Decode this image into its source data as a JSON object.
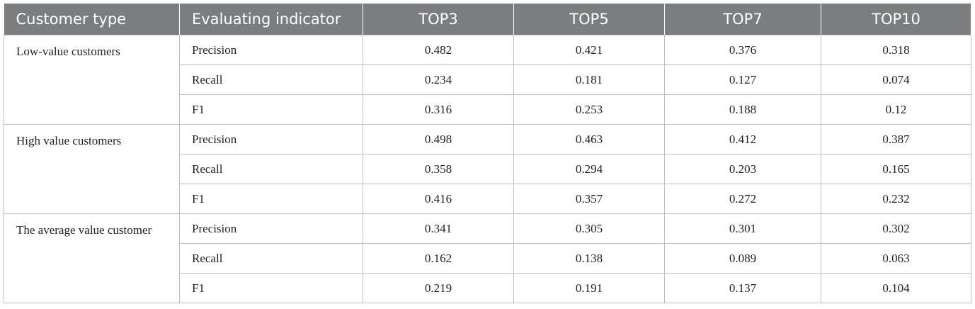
{
  "table": {
    "header": [
      "Customer type",
      "Evaluating indicator",
      "TOP3",
      "TOP5",
      "TOP7",
      "TOP10"
    ],
    "groups": [
      {
        "customer_type": "Low-value customers",
        "rows": [
          {
            "indicator": "Precision",
            "values": [
              0.482,
              0.421,
              0.376,
              0.318
            ]
          },
          {
            "indicator": "Recall",
            "values": [
              0.234,
              0.181,
              0.127,
              0.074
            ]
          },
          {
            "indicator": "F1",
            "values": [
              0.316,
              0.253,
              0.188,
              0.12
            ]
          }
        ]
      },
      {
        "customer_type": "High value customers",
        "rows": [
          {
            "indicator": "Precision",
            "values": [
              0.498,
              0.463,
              0.412,
              0.387
            ]
          },
          {
            "indicator": "Recall",
            "values": [
              0.358,
              0.294,
              0.203,
              0.165
            ]
          },
          {
            "indicator": "F1",
            "values": [
              0.416,
              0.357,
              0.272,
              0.232
            ]
          }
        ]
      },
      {
        "customer_type": "The average value customer",
        "rows": [
          {
            "indicator": "Precision",
            "values": [
              0.341,
              0.305,
              0.301,
              0.302
            ]
          },
          {
            "indicator": "Recall",
            "values": [
              0.162,
              0.138,
              0.089,
              0.063
            ]
          },
          {
            "indicator": "F1",
            "values": [
              0.219,
              0.191,
              0.137,
              0.104
            ]
          }
        ]
      }
    ]
  }
}
